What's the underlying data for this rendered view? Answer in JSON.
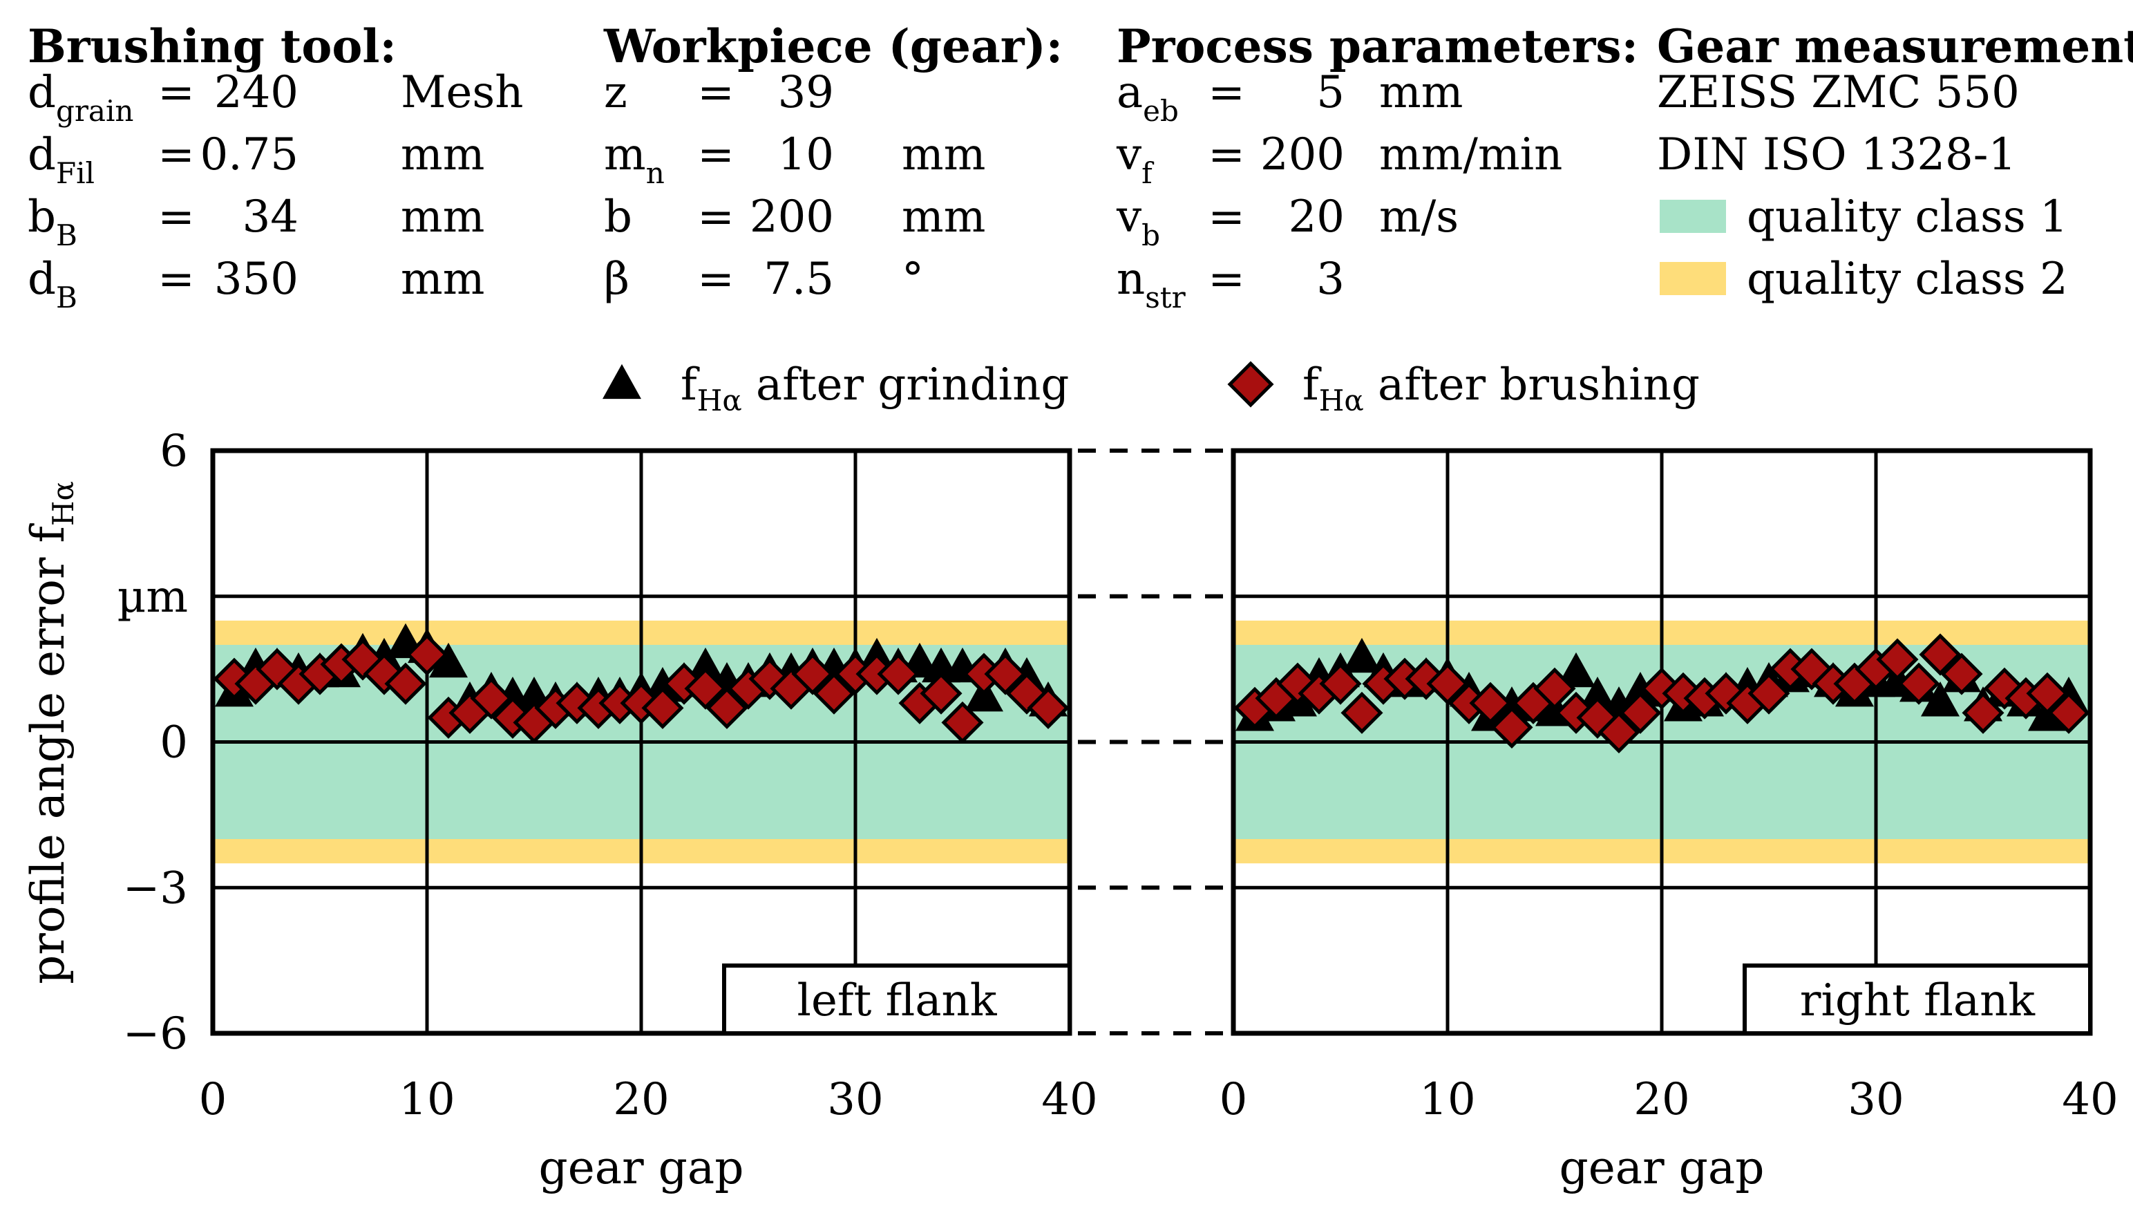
{
  "params": {
    "tool": {
      "title": "Brushing tool:",
      "rows": [
        {
          "sym": "d",
          "sub": "grain",
          "eq": "=",
          "val": "240",
          "unit": "Mesh"
        },
        {
          "sym": "d",
          "sub": "Fil",
          "eq": "=",
          "val": "0.75",
          "unit": "mm"
        },
        {
          "sym": "b",
          "sub": "B",
          "eq": "=",
          "val": "34",
          "unit": "mm"
        },
        {
          "sym": "d",
          "sub": "B",
          "eq": "=",
          "val": "350",
          "unit": "mm"
        }
      ]
    },
    "workpiece": {
      "title": "Workpiece (gear):",
      "rows": [
        {
          "sym": "z",
          "sub": "",
          "eq": "=",
          "val": "39",
          "unit": ""
        },
        {
          "sym": "m",
          "sub": "n",
          "eq": "=",
          "val": "10",
          "unit": "mm"
        },
        {
          "sym": "b",
          "sub": "",
          "eq": "=",
          "val": "200",
          "unit": "mm"
        },
        {
          "sym": "β",
          "sub": "",
          "eq": "=",
          "val": "7.5",
          "unit": "°"
        }
      ]
    },
    "process": {
      "title": "Process parameters:",
      "rows": [
        {
          "sym": "a",
          "sub": "eb",
          "eq": "=",
          "val": "5",
          "unit": "mm"
        },
        {
          "sym": "v",
          "sub": "f",
          "eq": "=",
          "val": "200",
          "unit": "mm/min"
        },
        {
          "sym": "v",
          "sub": "b",
          "eq": "=",
          "val": "20",
          "unit": "m/s"
        },
        {
          "sym": "n",
          "sub": "str",
          "eq": "=",
          "val": "3",
          "unit": ""
        }
      ]
    },
    "measurement": {
      "title": "Gear measurement:",
      "lines": [
        "ZEISS ZMC 550",
        "DIN ISO 1328-1"
      ],
      "quality_classes": [
        {
          "label": "quality class 1",
          "color": "#a8e3c8"
        },
        {
          "label": "quality class 2",
          "color": "#fedd7a"
        }
      ]
    }
  },
  "legend": [
    {
      "sym": "f",
      "sub": "Hα",
      "text": "after grinding",
      "marker": "triangle",
      "color": "#000000"
    },
    {
      "sym": "f",
      "sub": "Hα",
      "text": "after brushing",
      "marker": "diamond",
      "color": "#a80f0f"
    }
  ],
  "colors": {
    "band1": "#a8e3c8",
    "band2": "#fedd7a",
    "grinding": "#000000",
    "brushing": "#a80f0f"
  },
  "chart_data": [
    {
      "type": "scatter",
      "title": "left flank",
      "xlabel": "gear gap",
      "ylabel_main": "profile angle error f",
      "ylabel_sub": "Hα",
      "yunit": "µm",
      "xlim": [
        0,
        40
      ],
      "ylim": [
        -6,
        6
      ],
      "xticks": [
        "0",
        "10",
        "20",
        "30",
        "40"
      ],
      "yticks": [
        {
          "v": 6,
          "label": "6"
        },
        {
          "v": 3,
          "label": "µm"
        },
        {
          "v": 0,
          "label": "0"
        },
        {
          "v": -3,
          "label": "−3"
        },
        {
          "v": -6,
          "label": "−6"
        }
      ],
      "bands": [
        {
          "cls": 1,
          "from": -2.0,
          "to": 2.0
        },
        {
          "cls": 2,
          "from": -2.5,
          "to": 2.5
        }
      ],
      "x": [
        1,
        2,
        3,
        4,
        5,
        6,
        7,
        8,
        9,
        10,
        11,
        12,
        13,
        14,
        15,
        16,
        17,
        18,
        19,
        20,
        21,
        22,
        23,
        24,
        25,
        26,
        27,
        28,
        29,
        30,
        31,
        32,
        33,
        34,
        35,
        36,
        37,
        38,
        39
      ],
      "series": [
        {
          "name": "after grinding",
          "values": [
            1.0,
            1.5,
            1.5,
            1.4,
            1.4,
            1.4,
            1.8,
            1.7,
            2.0,
            1.9,
            1.6,
            0.8,
            1.0,
            0.9,
            0.9,
            0.8,
            0.8,
            0.9,
            0.9,
            1.0,
            1.1,
            1.2,
            1.5,
            1.2,
            1.2,
            1.4,
            1.4,
            1.5,
            1.5,
            1.5,
            1.7,
            1.5,
            1.6,
            1.5,
            1.5,
            0.9,
            1.5,
            1.3,
            0.8
          ]
        },
        {
          "name": "after brushing",
          "values": [
            1.3,
            1.2,
            1.5,
            1.2,
            1.4,
            1.6,
            1.7,
            1.4,
            1.2,
            1.8,
            0.5,
            0.6,
            0.9,
            0.5,
            0.4,
            0.7,
            0.8,
            0.7,
            0.8,
            0.8,
            0.7,
            1.2,
            1.1,
            0.7,
            1.1,
            1.3,
            1.1,
            1.4,
            1.0,
            1.4,
            1.4,
            1.4,
            0.8,
            1.0,
            0.4,
            1.4,
            1.4,
            1.0,
            0.7
          ]
        }
      ]
    },
    {
      "type": "scatter",
      "title": "right flank",
      "xlabel": "gear gap",
      "xlim": [
        0,
        40
      ],
      "ylim": [
        -6,
        6
      ],
      "xticks": [
        "0",
        "10",
        "20",
        "30",
        "40"
      ],
      "bands": [
        {
          "cls": 1,
          "from": -2.0,
          "to": 2.0
        },
        {
          "cls": 2,
          "from": -2.5,
          "to": 2.5
        }
      ],
      "x": [
        1,
        2,
        3,
        4,
        5,
        6,
        7,
        8,
        9,
        10,
        11,
        12,
        13,
        14,
        15,
        16,
        17,
        18,
        19,
        20,
        21,
        22,
        23,
        24,
        25,
        26,
        27,
        28,
        29,
        30,
        31,
        32,
        33,
        34,
        35,
        36,
        37,
        38,
        39
      ],
      "series": [
        {
          "name": "after grinding",
          "values": [
            0.5,
            0.7,
            0.8,
            1.3,
            1.4,
            1.7,
            1.4,
            1.2,
            1.3,
            1.3,
            1.0,
            0.5,
            0.7,
            0.7,
            0.6,
            1.4,
            0.9,
            0.7,
            1.0,
            1.1,
            0.7,
            0.8,
            1.0,
            1.1,
            1.2,
            1.3,
            1.4,
            1.2,
            1.0,
            1.2,
            1.2,
            1.1,
            0.8,
            1.3,
            0.7,
            1.0,
            0.8,
            0.5,
            0.9
          ]
        },
        {
          "name": "after brushing",
          "values": [
            0.7,
            0.9,
            1.2,
            1.0,
            1.2,
            0.6,
            1.2,
            1.3,
            1.3,
            1.2,
            0.8,
            0.8,
            0.3,
            0.8,
            1.1,
            0.6,
            0.5,
            0.2,
            0.6,
            1.1,
            1.0,
            0.9,
            1.0,
            0.8,
            1.0,
            1.5,
            1.5,
            1.2,
            1.2,
            1.5,
            1.7,
            1.2,
            1.8,
            1.4,
            0.6,
            1.1,
            0.9,
            1.0,
            0.6
          ]
        }
      ]
    }
  ]
}
